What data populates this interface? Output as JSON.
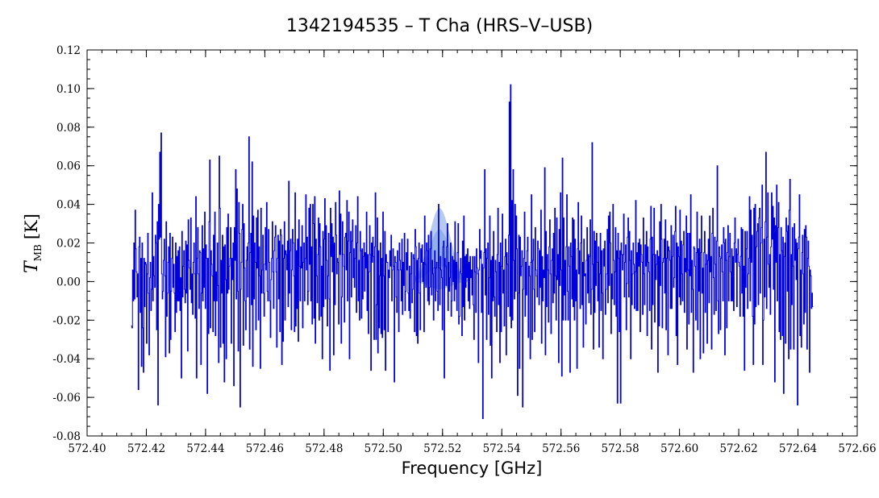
{
  "chart_data": {
    "type": "line",
    "title": "1342194535 – T Cha (HRS–V–USB)",
    "xlabel": "Frequency [GHz]",
    "ylabel_main": "T",
    "ylabel_sub": "MB",
    "ylabel_unit": "[K]",
    "xlim": [
      572.4,
      572.66
    ],
    "ylim": [
      -0.08,
      0.12
    ],
    "x_ticks": [
      "572.40",
      "572.42",
      "572.44",
      "572.46",
      "572.48",
      "572.50",
      "572.52",
      "572.54",
      "572.56",
      "572.58",
      "572.60",
      "572.62",
      "572.64",
      "572.66"
    ],
    "y_ticks": [
      "-0.08",
      "-0.06",
      "-0.04",
      "-0.02",
      "0.00",
      "0.02",
      "0.04",
      "0.06",
      "0.08",
      "0.10",
      "0.12"
    ],
    "grid": false,
    "line_color": "#0000dd",
    "band_color": "#7a9fe6",
    "spectrum": {
      "name": "",
      "x_start": 572.415,
      "x_end": 572.645,
      "points": [
        -0.023,
        -0.024,
        0.006,
        -0.01,
        0.02,
        -0.009,
        0.037,
        0.017,
        0.005,
        -0.008,
        0.004,
        -0.056,
        0.018,
        0.023,
        -0.016,
        0.012,
        -0.044,
        0.02,
        -0.024,
        -0.047,
        0.012,
        -0.013,
        0.01,
        0.009,
        -0.032,
        0.004,
        0.025,
        -0.006,
        -0.038,
        0.002,
        0.01,
        -0.015,
        -0.004,
        0.046,
        -0.01,
        0.013,
        0.003,
        -0.003,
        0.024,
        0.02,
        -0.025,
        0.031,
        -0.064,
        0.04,
        0.022,
        0.067,
        0.023,
        0.077,
        0.004,
        -0.009,
        -0.005,
        0.011,
        0.022,
        0.003,
        -0.039,
        0.031,
        -0.018,
        -0.006,
        0.01,
        0.018,
        -0.037,
        0.025,
        -0.03,
        -0.005,
        0.012,
        0.023,
        -0.003,
        0.009,
        -0.006,
        -0.026,
        0.02,
        -0.016,
        0.013,
        -0.01,
        0.016,
        -0.01,
        0.018,
        -0.015,
        0.002,
        -0.05,
        0.026,
        -0.008,
        0.008,
        0.016,
        -0.004,
        -0.011,
        0.021,
        -0.006,
        0.019,
        -0.036,
        0.032,
        0.011,
        0.007,
        -0.004,
        0.033,
        -0.011,
        0.004,
        -0.017,
        0.01,
        0.02,
        0.004,
        -0.019,
        0.044,
        -0.05,
        0.012,
        0.028,
        0.004,
        -0.014,
        0.016,
        0.015,
        -0.043,
        -0.006,
        0.029,
        -0.01,
        0.017,
        -0.003,
        0.036,
        -0.014,
        0.019,
        0.012,
        -0.058,
        0.012,
        -0.027,
        0.031,
        0.063,
        -0.024,
        0.016,
        0.009,
        0.003,
        -0.026,
        0.024,
        -0.01,
        0.036,
        -0.028,
        0.005,
        -0.01,
        0.02,
        -0.002,
        -0.042,
        0.065,
        0.038,
        -0.034,
        0.011,
        -0.006,
        0.024,
        -0.032,
        0.018,
        -0.052,
        0.019,
        0.001,
        -0.04,
        0.028,
        -0.006,
        0.035,
        -0.004,
        0.008,
        0.012,
        0.028,
        -0.032,
        0.012,
        0.001,
        0.02,
        -0.054,
        0.028,
        0.011,
        0.058,
        -0.009,
        0.048,
        -0.005,
        -0.036,
        0.041,
        0.025,
        -0.065,
        -0.004,
        0.01,
        0.027,
        0.04,
        -0.033,
        0.03,
        0.007,
        -0.01,
        -0.025,
        0.011,
        0.018,
        -0.008,
        0.02,
        0.075,
        -0.035,
        0.015,
        0.025,
        -0.012,
        0.062,
        -0.044,
        0.034,
        -0.009,
        0.02,
        0.01,
        -0.025,
        0.033,
        0.007,
        0.037,
        -0.02,
        0.018,
        0.003,
        -0.045,
        0.038,
        -0.006,
        0.006,
        0.024,
        -0.006,
        -0.018,
        0.009,
        0.028,
        0.006,
        0.041,
        -0.005,
        -0.01,
        0.027,
        0.01,
        -0.01,
        -0.029,
        0.001,
        0.012,
        0.031,
        0.005,
        -0.014,
        0.016,
        0.023,
        0.029,
        0.005,
        -0.034,
        0.012,
        0.024,
        -0.009,
        0.021,
        -0.026,
        0.027,
        0.024,
        -0.043,
        0.019,
        -0.031,
        0.012,
        0.031,
        -0.02,
        0.016,
        0.014,
        0.006,
        0.021,
        -0.013,
        0.052,
        -0.006,
        0.016,
        0.022,
        -0.025,
        0.006,
        0.027,
        0.02,
        0.003,
        -0.026,
        0.046,
        -0.023,
        0.016,
        -0.014,
        0.022,
        -0.031,
        0.032,
        0.008,
        -0.01,
        0.018,
        0.007,
        0.029,
        -0.024,
        0.01,
        0.02,
        -0.01,
        0.012,
        0.045,
        0.006,
        0.023,
        -0.012,
        -0.005,
        0.038,
        0.009,
        0.04,
        -0.01,
        0.018,
        -0.022,
        0.04,
        0.03,
        -0.019,
        0.044,
        -0.032,
        0.022,
        0.003,
        -0.011,
        0.014,
        0.033,
        -0.02,
        0.03,
        0.018,
        -0.018,
        0.008,
        -0.04,
        0.026,
        -0.013,
        0.022,
        0.043,
        -0.009,
        0.029,
        0.011,
        -0.023,
        0.003,
        0.025,
        -0.009,
        -0.046,
        0.038,
        0.013,
        0.03,
        0.005,
        0.023,
        -0.038,
        0.02,
        -0.012,
        0.041,
        0.024,
        0.004,
        0.012,
        0.01,
        -0.022,
        0.047,
        0.014,
        0.035,
        -0.032,
        -0.008,
        0.031,
        0.014,
        0.008,
        -0.021,
        0.023,
        0.025,
        0.006,
        0.042,
        -0.01,
        0.021,
        0.036,
        -0.04,
        0.015,
        0.026,
        -0.008,
        0.021,
        0.032,
        0.002,
        0.017,
        -0.003,
        0.012,
        0.029,
        -0.016,
        0.02,
        0.044,
        -0.01,
        0.011,
        -0.02,
        0.026,
        0.016,
        -0.019,
        0.017,
        -0.009,
        0.013,
        0.02,
        -0.005,
        0.015,
        0.007,
        0.036,
        -0.015,
        0.014,
        -0.027,
        0.005,
        0.029,
        0.014,
        -0.046,
        0.02,
        0.01,
        0.023,
        0.013,
        -0.03,
        0.018,
        0.046,
        -0.03,
        -0.012,
        0.033,
        -0.037,
        0.016,
        -0.024,
        0.003,
        0.02,
        -0.027,
        0.012,
        -0.029,
        0.036,
        0.003,
        -0.025,
        0.026,
        -0.046,
        0.014,
        0.01,
        0.01,
        -0.026,
        0.006,
        0.002,
        0.016,
        0.008,
        0.024,
        -0.01,
        0.006,
        0.017,
        0.008,
        -0.052,
        0.013,
        0.01,
        -0.008,
        -0.016,
        0.016,
        0.006,
        -0.026,
        0.02,
        0.011,
        0.006,
        -0.01,
        0.022,
        -0.017,
        0.01,
        -0.002,
        0.025,
        -0.015,
        -0.005,
        0.015,
        0.006,
        0.022,
        -0.006,
        -0.015,
        0.008,
        -0.019,
        0.004,
        0.015,
        -0.011,
        -0.004,
        0.014,
        0.012,
        -0.026,
        0.027,
        0.018,
        -0.028,
        0.011,
        -0.032,
        0.012,
        0.02,
        -0.006,
        -0.025,
        0.017,
        0.01,
        0.019,
        0.0,
        0.01,
        -0.026,
        0.034,
        0.009,
        -0.003,
        0.02,
        0.016,
        -0.01,
        0.024,
        -0.012,
        -0.003,
        0.017,
        0.026,
        -0.007,
        0.011,
        0.004,
        -0.02,
        0.007,
        0.016,
        -0.01,
        0.007,
        0.01,
        -0.005,
        -0.015,
        0.04,
        0.007,
        -0.012,
        0.013,
        0.006,
        0.002,
        -0.025,
        0.018,
        0.021,
        -0.05,
        0.012,
        0.008,
        -0.002,
        0.018,
        0.03,
        -0.015,
        0.01,
        -0.005,
        0.002,
        0.02,
        -0.018,
        -0.01,
        0.013,
        0.0,
        0.011,
        -0.01,
        0.031,
        -0.004,
        0.01,
        -0.015,
        0.015,
        0.03,
        -0.022,
        -0.018,
        0.005,
        0.012,
        0.004,
        -0.028,
        0.021,
        -0.013,
        0.034,
        -0.02,
        0.013,
        -0.003,
        0.014,
        0.002,
        0.017,
        -0.01,
        0.01,
        -0.014,
        0.013,
        0.002,
        0.006,
        -0.007,
        0.013,
        -0.012,
        -0.03,
        0.013,
        0.005,
        -0.016,
        0.017,
        0.007,
        0.004,
        -0.042,
        0.006,
        0.027,
        0.012,
        0.016,
        -0.016,
        0.009,
        -0.071,
        0.007,
        0.015,
        0.058,
        -0.007,
        0.017,
        -0.03,
        0.012,
        0.02,
        -0.017,
        0.002,
        0.034,
        -0.033,
        0.011,
        -0.05,
        0.013,
        -0.01,
        0.026,
        -0.008,
        -0.018,
        0.011,
        0.005,
        -0.026,
        0.014,
        0.038,
        -0.012,
        0.01,
        -0.042,
        0.02,
        -0.026,
        0.008,
        0.035,
        -0.006,
        0.006,
        -0.023,
        0.013,
        0.022,
        -0.038,
        0.015,
        0.009,
        -0.013,
        0.024,
        0.093,
        -0.018,
        0.102,
        -0.024,
        0.042,
        -0.02,
        0.058,
        0.011,
        -0.009,
        0.04,
        -0.005,
        0.034,
        0.017,
        -0.059,
        -0.006,
        0.024,
        -0.045,
        0.023,
        0.003,
        0.008,
        0.016,
        -0.065,
        -0.004,
        0.012,
        0.036,
        -0.018,
        0.01,
        -0.007,
        0.016,
        0.023,
        -0.029,
        0.008,
        0.003,
        -0.04,
        0.01,
        0.045,
        -0.03,
        0.011,
        0.022,
        -0.004,
        -0.026,
        0.028,
        0.006,
        0.003,
        -0.008,
        0.021,
        0.017,
        -0.012,
        0.016,
        -0.003,
        0.037,
        -0.032,
        0.013,
        -0.01,
        0.006,
        0.002,
        0.059,
        -0.038,
        0.026,
        -0.013,
        0.014,
        0.006,
        -0.021,
        0.018,
        0.032,
        0.004,
        -0.027,
        0.011,
        0.017,
        -0.011,
        0.025,
        -0.006,
        0.038,
        0.003,
        -0.02,
        0.033,
        0.001,
        0.014,
        -0.042,
        0.027,
        -0.002,
        0.046,
        0.006,
        -0.049,
        0.064,
        -0.02,
        0.033,
        -0.007,
        0.011,
        -0.02,
        0.018,
        0.045,
        -0.005,
        -0.02,
        0.018,
        0.008,
        -0.047,
        0.02,
        0.013,
        -0.009,
        0.033,
        -0.013,
        0.032,
        -0.02,
        0.022,
        -0.01,
        0.006,
        -0.045,
        0.017,
        0.041,
        0.004,
        0.016,
        -0.014,
        0.02,
        0.034,
        -0.012,
        0.01,
        -0.034,
        0.022,
        0.003,
        0.004,
        -0.022,
        0.011,
        0.028,
        -0.006,
        0.014,
        -0.011,
        0.013,
        0.032,
        -0.017,
        -0.004,
        0.072,
        0.009,
        -0.035,
        0.026,
        -0.016,
        0.021,
        -0.002,
        0.025,
        0.01,
        -0.01,
        0.018,
        -0.034,
        0.004,
        0.025,
        -0.015,
        0.016,
        -0.006,
        -0.04,
        0.017,
        0.008,
        0.021,
        -0.017,
        -0.004,
        0.004,
        0.027,
        -0.011,
        0.034,
        -0.002,
        0.036,
        0.02,
        -0.027,
        0.004,
        -0.009,
        0.04,
        0.011,
        -0.012,
        0.005,
        0.028,
        -0.018,
        0.016,
        -0.063,
        0.025,
        0.012,
        -0.026,
        0.016,
        -0.063,
        0.02,
        0.014,
        0.006,
        0.014,
        0.035,
        -0.008,
        0.01,
        0.019,
        -0.025,
        -0.001,
        0.023,
        0.033,
        -0.008,
        0.026,
        0.011,
        -0.04,
        0.016,
        -0.012,
        0.004,
        0.02,
        0.009,
        -0.014,
        0.005,
        0.042,
        -0.015,
        0.015,
        -0.015,
        0.02,
        0.008,
        0.022,
        -0.026,
        0.019,
        0.014,
        0.01,
        -0.017,
        0.033,
        0.004,
        -0.012,
        0.019,
        0.008,
        0.026,
        -0.028,
        0.018,
        0.01,
        0.005,
        -0.015,
        0.022,
        0.039,
        -0.035,
        0.023,
        -0.012,
        0.014,
        0.038,
        -0.021,
        0.014,
        0.001,
        0.009,
        0.016,
        -0.047,
        0.013,
        -0.023,
        0.031,
        -0.002,
        0.04,
        0.022,
        -0.024,
        0.01,
        0.012,
        0.022,
        -0.006,
        0.032,
        -0.025,
        0.012,
        0.021,
        -0.038,
        0.018,
        0.016,
        0.011,
        -0.014,
        0.029,
        -0.014,
        0.013,
        0.024,
        -0.003,
        0.002,
        0.026,
        0.039,
        -0.028,
        0.02,
        -0.043,
        0.018,
        0.013,
        -0.008,
        0.037,
        -0.012,
        0.021,
        0.004,
        -0.01,
        0.019,
        0.026,
        -0.016,
        0.012,
        0.005,
        0.034,
        -0.035,
        0.025,
        0.006,
        -0.022,
        0.025,
        0.003,
        0.045,
        -0.016,
        0.011,
        -0.004,
        -0.047,
        0.018,
        0.017,
        0.008,
        -0.02,
        0.015,
        0.036,
        -0.025,
        0.017,
        -0.005,
        0.022,
        -0.04,
        0.015,
        0.034,
        -0.006,
        0.007,
        -0.037,
        0.015,
        0.026,
        -0.016,
        0.009,
        0.014,
        -0.032,
        0.011,
        0.022,
        -0.011,
        0.034,
        0.005,
        0.013,
        -0.035,
        0.025,
        0.038,
        0.002,
        -0.017,
        0.023,
        0.009,
        -0.015,
        0.021,
        0.06,
        -0.01,
        -0.027,
        0.018,
        0.013,
        -0.025,
        0.012,
        0.019,
        0.005,
        -0.01,
        0.028,
        0.02,
        -0.038,
        0.022,
        0.011,
        -0.024,
        0.015,
        0.029,
        -0.01,
        0.013,
        0.025,
        0.005,
        -0.01,
        0.017,
        -0.01,
        0.013,
        -0.015,
        0.02,
        0.033,
        0.01,
        0.017,
        -0.013,
        0.014,
        0.022,
        0.01,
        0.008,
        -0.018,
        0.013,
        0.028,
        -0.006,
        0.027,
        -0.018,
        0.008,
        -0.046,
        0.026,
        -0.003,
        0.017,
        0.026,
        -0.014,
        0.004,
        0.012,
        0.044,
        -0.01,
        0.037,
        0.01,
        0.024,
        -0.018,
        -0.043,
        0.038,
        -0.022,
        0.04,
        -0.013,
        0.018,
        0.026,
        0.03,
        -0.012,
        0.033,
        0.038,
        -0.006,
        0.02,
        0.028,
        0.05,
        -0.043,
        -0.02,
        0.022,
        -0.008,
        0.031,
        0.067,
        -0.014,
        0.023,
        0.046,
        0.009,
        -0.003,
        0.014,
        -0.017,
        0.018,
        0.046,
        0.022,
        0.039,
        -0.004,
        0.033,
        -0.052,
        0.029,
        0.01,
        0.05,
        -0.01,
        0.028,
        0.041,
        -0.026,
        0.014,
        -0.03,
        0.028,
        0.016,
        -0.028,
        0.023,
        -0.058,
        0.013,
        0.02,
        -0.032,
        0.033,
        0.026,
        -0.005,
        0.029,
        -0.04,
        0.037,
        0.053,
        -0.035,
        0.014,
        -0.012,
        0.028,
        0.008,
        -0.035,
        0.03,
        0.011,
        0.022,
        0.001,
        0.02,
        -0.064,
        0.017,
        0.023,
        0.045,
        -0.028,
        0.006,
        -0.034,
        0.015,
        0.024,
        0.004,
        -0.022,
        0.027,
        -0.016,
        0.029,
        0.023,
        -0.035,
        0.012,
        0.021,
        0.008,
        -0.047,
        0.006,
        0.003,
        -0.014,
        -0.006,
        -0.013
      ]
    },
    "uncertainty_band": {
      "x_start": 572.5105,
      "x_end": 572.5285,
      "peak_x": 572.519,
      "upper_peak": 0.038,
      "center_peak": 0.018,
      "lower_peak": -0.004
    }
  }
}
